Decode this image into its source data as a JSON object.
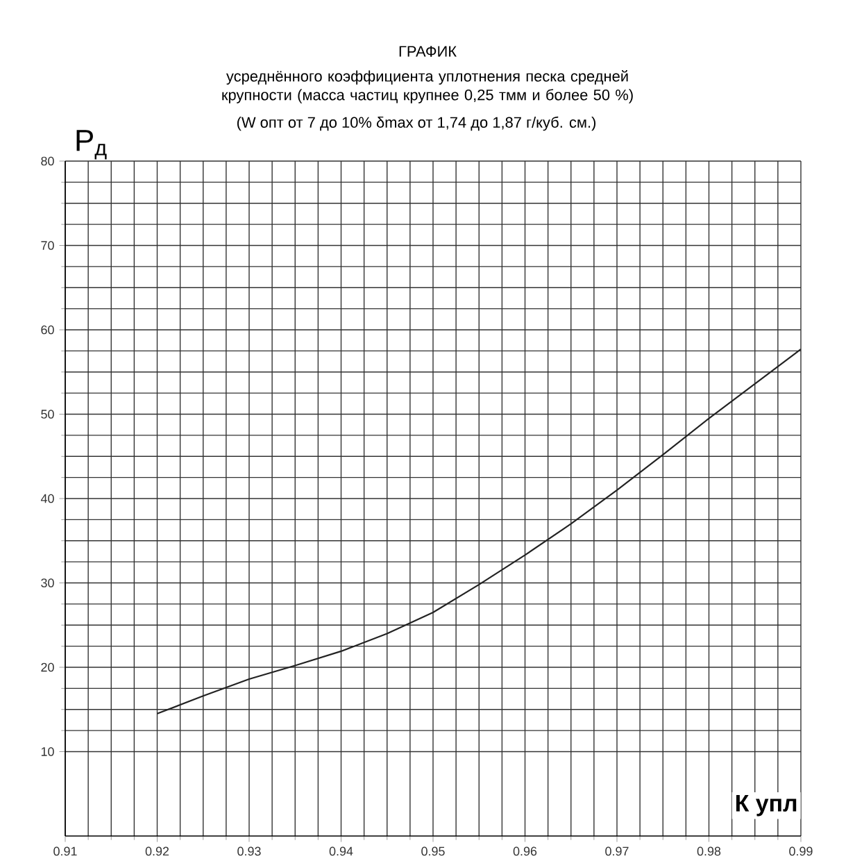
{
  "chart_data": {
    "type": "line",
    "title": "ГРАФИК",
    "subtitle": "усреднённого коэффициента уплотнения  песка средней крупности (масса частиц крупнее 0,25 тмм и более 50 %)",
    "annotations": [
      "(W опт от 7 до 10%     δmax  от 1,74 до 1,87 г/куб. см.)"
    ],
    "xlabel": "К упл",
    "ylabel": "P$_{д}$",
    "x": [
      0.92,
      0.925,
      0.93,
      0.935,
      0.94,
      0.945,
      0.95,
      0.955,
      0.96,
      0.965,
      0.97,
      0.975,
      0.98,
      0.985,
      0.99
    ],
    "series": [
      {
        "color": "#222222",
        "values": [
          14.5,
          16.6,
          18.6,
          20.2,
          21.9,
          24.0,
          26.5,
          29.8,
          33.3,
          37.0,
          41.0,
          45.2,
          49.5,
          53.6,
          57.7
        ]
      }
    ],
    "xlim": [
      0.91,
      0.99
    ],
    "ylim": [
      0,
      80
    ],
    "xticks": [
      0.91,
      0.92,
      0.93,
      0.94,
      0.95,
      0.96,
      0.97,
      0.98,
      0.99
    ],
    "yticks": [
      10,
      20,
      30,
      40,
      50,
      60,
      70,
      80
    ],
    "grid": true,
    "marker": "none",
    "line_style": "solid"
  }
}
